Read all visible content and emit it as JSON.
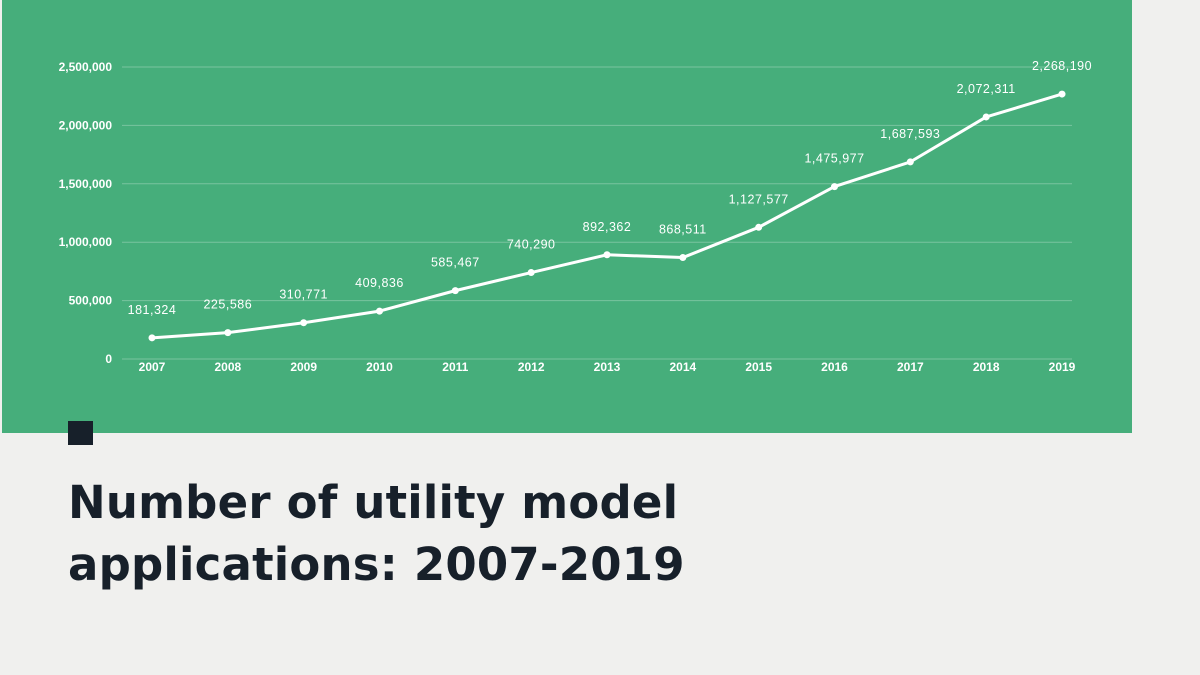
{
  "title": "Number of utility model applications: 2007-2019",
  "colors": {
    "panel": "#46ae7b",
    "background": "#f0f0ee",
    "line": "#ffffff",
    "title": "#17202a"
  },
  "chart_data": {
    "type": "line",
    "title": "",
    "xlabel": "",
    "ylabel": "",
    "categories": [
      "2007",
      "2008",
      "2009",
      "2010",
      "2011",
      "2012",
      "2013",
      "2014",
      "2015",
      "2016",
      "2017",
      "2018",
      "2019"
    ],
    "series": [
      {
        "values": [
          181324,
          225586,
          310771,
          409836,
          585467,
          740290,
          892362,
          868511,
          1127577,
          1475977,
          1687593,
          2072311,
          2268190
        ]
      }
    ],
    "data_labels": [
      "181,324",
      "225,586",
      "310,771",
      "409,836",
      "585,467",
      "740,290",
      "892,362",
      "868,511",
      "1,127,577",
      "1,475,977",
      "1,687,593",
      "2,072,311",
      "2,268,190"
    ],
    "ylim": [
      0,
      2500000
    ],
    "yticks": [
      0,
      500000,
      1000000,
      1500000,
      2000000,
      2500000
    ],
    "ytick_labels": [
      "0",
      "500,000",
      "1,000,000",
      "1,500,000",
      "2,000,000",
      "2,500,000"
    ],
    "grid": true,
    "legend": "none"
  }
}
